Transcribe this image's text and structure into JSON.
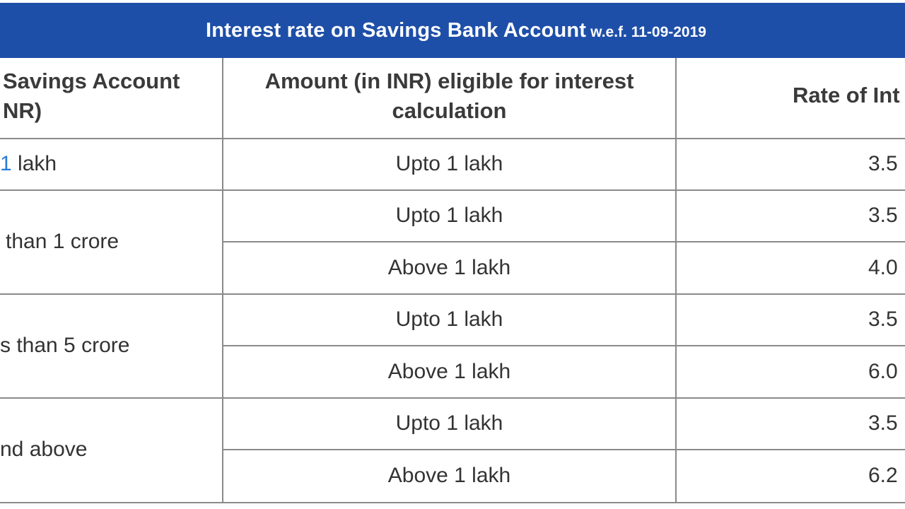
{
  "banner": {
    "title": "Interest rate on Savings Bank Account",
    "effective": "w.e.f. 11-09-2019"
  },
  "table": {
    "headers": {
      "balance_line1": "Savings Account",
      "balance_line2": "NR)",
      "amount_line1": "Amount (in INR) eligible for interest",
      "amount_line2": "calculation",
      "rate": "Rate of Int"
    },
    "slabs": [
      {
        "balance_prefix": "1",
        "balance_rest": " lakh"
      },
      {
        "balance": "than 1 crore"
      },
      {
        "balance": "s than 5 crore"
      },
      {
        "balance": "nd above"
      }
    ],
    "rows": [
      {
        "amount": "Upto 1 lakh",
        "rate": "3.5"
      },
      {
        "amount": "Upto 1 lakh",
        "rate": "3.5"
      },
      {
        "amount": "Above 1 lakh",
        "rate": "4.0"
      },
      {
        "amount": "Upto 1 lakh",
        "rate": "3.5"
      },
      {
        "amount": "Above 1 lakh",
        "rate": "6.0"
      },
      {
        "amount": "Upto 1 lakh",
        "rate": "3.5"
      },
      {
        "amount": "Above 1 lakh",
        "rate": "6.2"
      }
    ]
  },
  "colors": {
    "banner_bg": "#1e4fa8",
    "border": "#8a8a8a",
    "text": "#333333",
    "link": "#2a7bd6"
  }
}
